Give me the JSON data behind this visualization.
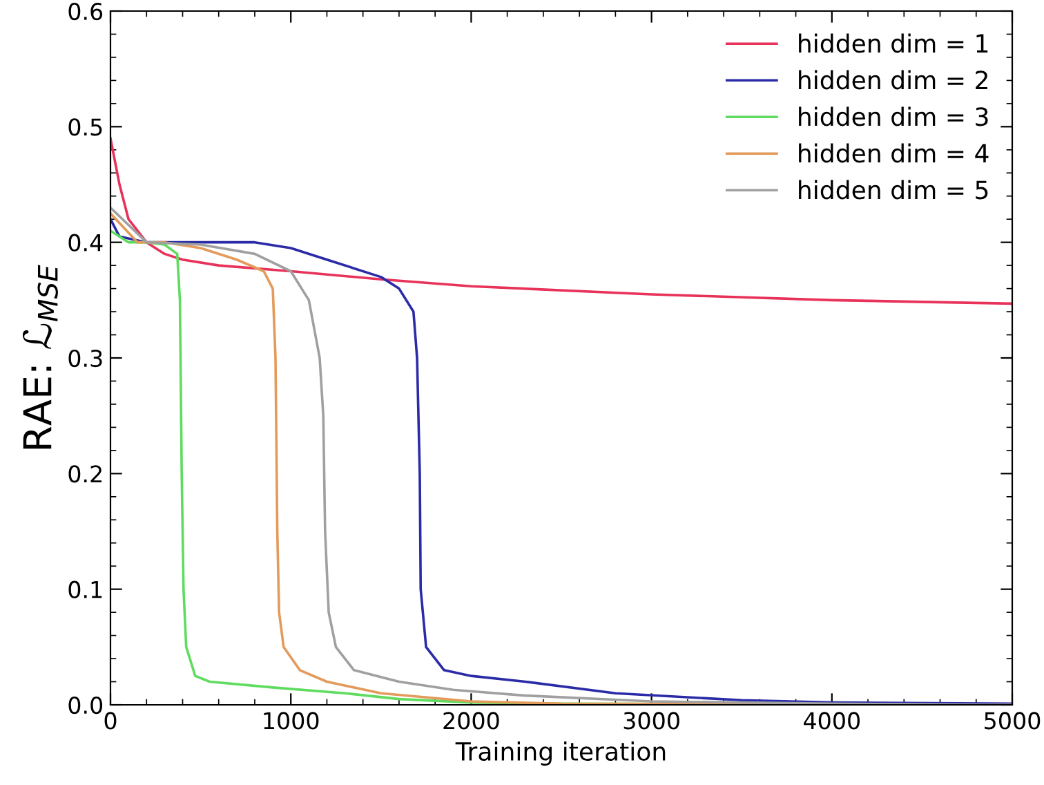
{
  "chart_data": {
    "type": "line",
    "xlabel": "Training iteration",
    "ylabel": "RAE: ℒ$_{MSE}$",
    "xlim": [
      0,
      5000
    ],
    "xticks": [
      0,
      1000,
      2000,
      3000,
      4000,
      5000
    ],
    "ylim": [
      0.0,
      0.6
    ],
    "yticks": [
      {
        "value": 0.0,
        "label": "0.0"
      },
      0.1,
      0.2,
      0.3,
      0.4,
      0.5,
      0.6
    ],
    "grid": false,
    "legend": "top right",
    "marker": "none",
    "line_style": "solid",
    "series": [
      {
        "name": "hidden dim = 1",
        "color": "#e8325a",
        "x": [
          0,
          50,
          100,
          200,
          300,
          400,
          600,
          1000,
          1500,
          2000,
          3000,
          4000,
          5000
        ],
        "values": [
          0.49,
          0.45,
          0.42,
          0.4,
          0.39,
          0.385,
          0.38,
          0.375,
          0.368,
          0.362,
          0.355,
          0.35,
          0.347
        ]
      },
      {
        "name": "hidden dim = 2",
        "color": "#2b2ba8",
        "x": [
          0,
          50,
          200,
          800,
          1000,
          1200,
          1500,
          1600,
          1680,
          1700,
          1715,
          1720,
          1750,
          1850,
          2000,
          2300,
          2800,
          3500,
          4000,
          5000
        ],
        "values": [
          0.42,
          0.405,
          0.4,
          0.4,
          0.395,
          0.385,
          0.37,
          0.36,
          0.34,
          0.3,
          0.2,
          0.1,
          0.05,
          0.03,
          0.025,
          0.02,
          0.01,
          0.004,
          0.002,
          0.001
        ]
      },
      {
        "name": "hidden dim = 3",
        "color": "#5fdc5f",
        "x": [
          0,
          100,
          200,
          300,
          370,
          385,
          395,
          405,
          420,
          470,
          550,
          900,
          1300,
          1600,
          2000,
          2500,
          5000
        ],
        "values": [
          0.41,
          0.4,
          0.4,
          0.398,
          0.39,
          0.35,
          0.2,
          0.1,
          0.05,
          0.025,
          0.02,
          0.015,
          0.01,
          0.005,
          0.002,
          0.001,
          0.0
        ]
      },
      {
        "name": "hidden dim = 4",
        "color": "#e39a5a",
        "x": [
          0,
          150,
          300,
          500,
          700,
          850,
          900,
          915,
          925,
          935,
          960,
          1050,
          1200,
          1500,
          2000,
          2500,
          5000
        ],
        "values": [
          0.425,
          0.4,
          0.4,
          0.395,
          0.385,
          0.375,
          0.36,
          0.3,
          0.15,
          0.08,
          0.05,
          0.03,
          0.02,
          0.01,
          0.003,
          0.001,
          0.0
        ]
      },
      {
        "name": "hidden dim = 5",
        "color": "#a0a0a0",
        "x": [
          0,
          200,
          500,
          800,
          1000,
          1100,
          1160,
          1180,
          1190,
          1210,
          1250,
          1350,
          1600,
          1900,
          2300,
          3000,
          4000,
          5000
        ],
        "values": [
          0.43,
          0.4,
          0.398,
          0.39,
          0.375,
          0.35,
          0.3,
          0.25,
          0.15,
          0.08,
          0.05,
          0.03,
          0.02,
          0.013,
          0.008,
          0.003,
          0.001,
          0.0
        ]
      }
    ]
  }
}
